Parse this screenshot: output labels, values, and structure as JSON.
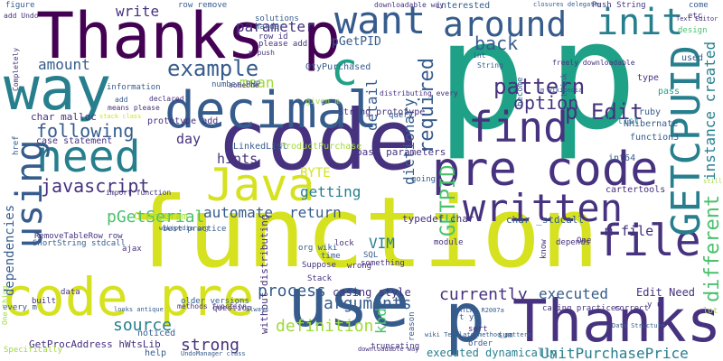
{
  "palette": {
    "c1": "#440154",
    "c2": "#46327e",
    "c3": "#365c8d",
    "c4": "#277f8e",
    "c5": "#1fa187",
    "c6": "#4ac16d",
    "c7": "#a0da39",
    "c8": "#d6e21f"
  },
  "words": [
    {
      "text": "function",
      "color": "c8"
    },
    {
      "text": "p",
      "color": "c5"
    },
    {
      "text": "p",
      "color": "c5"
    },
    {
      "text": "code",
      "color": "c2"
    },
    {
      "text": "Thanks p",
      "color": "c1"
    },
    {
      "text": "use",
      "color": "c3"
    },
    {
      "text": "code pre",
      "color": "c8"
    },
    {
      "text": "Thanks",
      "color": "c2"
    },
    {
      "text": "p",
      "color": "c3"
    },
    {
      "text": "pre code",
      "color": "c2"
    },
    {
      "text": "decimal",
      "color": "c3"
    },
    {
      "text": "way",
      "color": "c4"
    },
    {
      "text": "want",
      "color": "c3"
    },
    {
      "text": "around",
      "color": "c3"
    },
    {
      "text": "init",
      "color": "c4"
    },
    {
      "text": "need",
      "color": "c4"
    },
    {
      "text": "Java",
      "color": "c8"
    },
    {
      "text": "written",
      "color": "c2"
    },
    {
      "text": "file",
      "color": "c2"
    },
    {
      "text": "find",
      "color": "c2"
    },
    {
      "text": "GETCPUID",
      "color": "c4"
    },
    {
      "text": "c",
      "color": "c5"
    },
    {
      "text": "using",
      "color": "c3"
    },
    {
      "text": "example",
      "color": "c3"
    },
    {
      "text": "p Edit",
      "color": "c2"
    },
    {
      "text": "pattern",
      "color": "c2"
    },
    {
      "text": "option",
      "color": "c2"
    },
    {
      "text": "back",
      "color": "c3"
    },
    {
      "text": "different",
      "color": "c6"
    },
    {
      "text": "instance created",
      "color": "c4"
    },
    {
      "text": "javascript",
      "color": "c2"
    },
    {
      "text": "following",
      "color": "c3"
    },
    {
      "text": "required",
      "color": "c3"
    },
    {
      "text": "dictionary",
      "color": "c3"
    },
    {
      "text": "detail",
      "color": "c3"
    },
    {
      "text": "getting",
      "color": "c4"
    },
    {
      "text": "automate",
      "color": "c3"
    },
    {
      "text": "return",
      "color": "c3"
    },
    {
      "text": "pGetSerial",
      "color": "c6"
    },
    {
      "text": "process",
      "color": "c3"
    },
    {
      "text": "arguments",
      "color": "c3"
    },
    {
      "text": "currently",
      "color": "c2"
    },
    {
      "text": "executed",
      "color": "c3"
    },
    {
      "text": "source",
      "color": "c4"
    },
    {
      "text": "definition",
      "color": "c7"
    },
    {
      "text": "strong",
      "color": "c2"
    },
    {
      "text": "UnitPurchasePrice",
      "color": "c4"
    },
    {
      "text": "dependencies",
      "color": "c3"
    },
    {
      "text": "GETPID",
      "color": "c6"
    },
    {
      "text": "m file",
      "color": "c2"
    },
    {
      "text": "amount",
      "color": "c3"
    },
    {
      "text": "mean",
      "color": "c7"
    },
    {
      "text": "parameter",
      "color": "c2"
    },
    {
      "text": "write",
      "color": "c2"
    },
    {
      "text": "pGetPID",
      "color": "c3"
    },
    {
      "text": "hints",
      "color": "c2"
    },
    {
      "text": "day",
      "color": "c2"
    },
    {
      "text": "VIM",
      "color": "c4"
    },
    {
      "text": "BYTE",
      "color": "c8"
    },
    {
      "text": "kbd",
      "color": "c6"
    },
    {
      "text": "Edit Need",
      "color": "c2"
    },
    {
      "text": "casing style",
      "color": "c2"
    },
    {
      "text": "pass parameters",
      "color": "c2"
    },
    {
      "text": "executed dynamically",
      "color": "c4"
    },
    {
      "text": "GetProcAddress hWtsLib",
      "color": "c2"
    },
    {
      "text": "typedef char",
      "color": "c2"
    },
    {
      "text": "LinkedList",
      "color": "c3"
    },
    {
      "text": "ProductPurchase",
      "color": "c7"
    },
    {
      "text": "char _stdcall",
      "color": "c3"
    },
    {
      "text": "C program",
      "color": "c7"
    },
    {
      "text": "char malloc",
      "color": "c2"
    },
    {
      "text": "case statement",
      "color": "c2"
    },
    {
      "text": "String prototype",
      "color": "c2"
    },
    {
      "text": "prototype add",
      "color": "c2"
    },
    {
      "text": "full list",
      "color": "c5"
    },
    {
      "text": "interested",
      "color": "c3"
    },
    {
      "text": "QtyPurchased",
      "color": "c3"
    },
    {
      "text": "without distributing",
      "color": "c2"
    },
    {
      "text": "noticed",
      "color": "c3"
    },
    {
      "text": "help",
      "color": "c3"
    },
    {
      "text": "int64",
      "color": "c3"
    },
    {
      "text": "cartertools",
      "color": "c2"
    },
    {
      "text": "NHibernate",
      "color": "c3"
    },
    {
      "text": "function3",
      "color": "c3"
    },
    {
      "text": "ruby",
      "color": "c3"
    },
    {
      "text": "pass",
      "color": "c5"
    },
    {
      "text": "type",
      "color": "c2"
    },
    {
      "text": "used",
      "color": "c3"
    },
    {
      "text": "design",
      "color": "c6"
    },
    {
      "text": "number PHP",
      "color": "c3"
    },
    {
      "text": "lock",
      "color": "c2"
    },
    {
      "text": "wrong",
      "color": "c2"
    },
    {
      "text": "module",
      "color": "c2"
    },
    {
      "text": "sort",
      "color": "c2"
    },
    {
      "text": "query",
      "color": "c3"
    },
    {
      "text": "figure",
      "color": "c3"
    },
    {
      "text": "come",
      "color": "c3"
    },
    {
      "text": "etc",
      "color": "c2"
    },
    {
      "text": "One",
      "color": "c2"
    },
    {
      "text": "sum",
      "color": "c3"
    },
    {
      "text": "Suppose",
      "color": "c2"
    },
    {
      "text": "Stack",
      "color": "c2"
    },
    {
      "text": "time",
      "color": "c3"
    },
    {
      "text": "SQL",
      "color": "c3"
    },
    {
      "text": "order",
      "color": "c3"
    },
    {
      "text": "reason",
      "color": "c3"
    },
    {
      "text": "question",
      "color": "c2"
    },
    {
      "text": "information",
      "color": "c3"
    },
    {
      "text": "solutions",
      "color": "c3"
    },
    {
      "text": "harder",
      "color": "c3"
    },
    {
      "text": "please add",
      "color": "c2"
    },
    {
      "text": "row remove",
      "color": "c3"
    },
    {
      "text": "row id",
      "color": "c2"
    },
    {
      "text": "Push String",
      "color": "c2"
    },
    {
      "text": "downloadable way",
      "color": "c2"
    },
    {
      "text": "distributing every",
      "color": "c2"
    },
    {
      "text": "freely downloadable",
      "color": "c2"
    },
    {
      "text": "Text Editor",
      "color": "c2"
    },
    {
      "text": "Completely",
      "color": "c2"
    },
    {
      "text": "add Undo",
      "color": "c2"
    },
    {
      "text": "declared",
      "color": "c2"
    },
    {
      "text": "someone",
      "color": "c2"
    },
    {
      "text": "best practice",
      "color": "c3"
    },
    {
      "text": "RemoveTableRow row",
      "color": "c2"
    },
    {
      "text": "ShortString stdcall",
      "color": "c3"
    },
    {
      "text": "ajax",
      "color": "c2"
    },
    {
      "text": "org wiki",
      "color": "c3"
    },
    {
      "text": "something",
      "color": "c2"
    },
    {
      "text": "casing practices",
      "color": "c2"
    },
    {
      "text": "correct",
      "color": "c2"
    },
    {
      "text": "Specifically",
      "color": "c7"
    },
    {
      "text": "truncating",
      "color": "c2"
    },
    {
      "text": "going",
      "color": "c3"
    },
    {
      "text": "depends",
      "color": "c2"
    },
    {
      "text": "think",
      "color": "c3"
    },
    {
      "text": "know",
      "color": "c2"
    },
    {
      "text": "become",
      "color": "c3"
    },
    {
      "text": "int",
      "color": "c3"
    },
    {
      "text": "String",
      "color": "c3"
    },
    {
      "text": "given m",
      "color": "c7"
    },
    {
      "text": "every m",
      "color": "c3"
    },
    {
      "text": "data",
      "color": "c2"
    },
    {
      "text": "older versions",
      "color": "c3"
    },
    {
      "text": "One thing",
      "color": "c7"
    },
    {
      "text": "built",
      "color": "c2"
    },
    {
      "text": "href",
      "color": "c3"
    },
    {
      "text": "still",
      "color": "c7"
    },
    {
      "text": "lot",
      "color": "c7"
    },
    {
      "text": "y u",
      "color": "c2"
    },
    {
      "text": "t y",
      "color": "c3"
    },
    {
      "text": "add",
      "color": "c3"
    },
    {
      "text": "means please",
      "color": "c2"
    },
    {
      "text": "methods function",
      "color": "c2"
    },
    {
      "text": "import function",
      "color": "c2"
    },
    {
      "text": "p push",
      "color": "c2"
    },
    {
      "text": "MATLAB R2007a",
      "color": "c3"
    },
    {
      "text": "wiki Template_method_pattern",
      "color": "c3"
    },
    {
      "text": "Data Structure",
      "color": "c3"
    },
    {
      "text": "downloadable way",
      "color": "c2"
    },
    {
      "text": "stack class",
      "color": "c8"
    },
    {
      "text": "looks antique",
      "color": "c3"
    },
    {
      "text": "always",
      "color": "c3"
    },
    {
      "text": "wikipedia org",
      "color": "c3"
    },
    {
      "text": "m wikipedia",
      "color": "c3"
    },
    {
      "text": "closures delegates",
      "color": "c3"
    },
    {
      "text": "UndoManager class",
      "color": "c3"
    }
  ]
}
